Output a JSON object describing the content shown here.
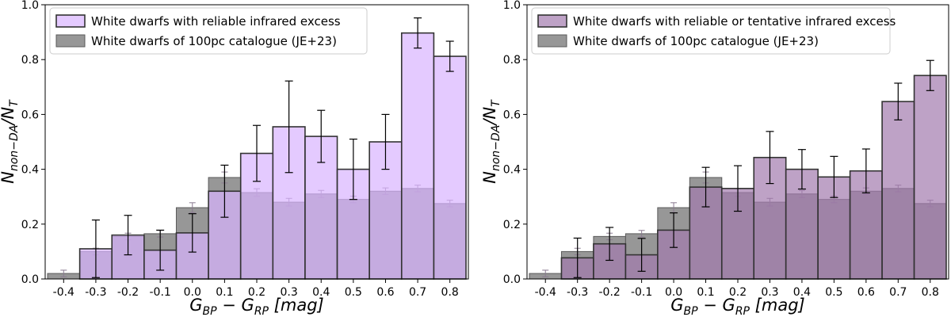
{
  "chart_data": [
    {
      "type": "bar",
      "categories": [
        "-0.4",
        "-0.3",
        "-0.2",
        "-0.1",
        "0.0",
        "0.1",
        "0.2",
        "0.3",
        "0.4",
        "0.5",
        "0.6",
        "0.7",
        "0.8"
      ],
      "xlabel_main": "G",
      "xlabel_sub1": "BP",
      "xlabel_mid": " − G",
      "xlabel_sub2": "RP",
      "xlabel_unit": " [mag]",
      "ylabel_main": "N",
      "ylabel_sub1": "non−DA",
      "ylabel_slash": "/N",
      "ylabel_sub2": "T",
      "ylim": [
        0,
        1.0
      ],
      "yticks": [
        "0.0",
        "0.2",
        "0.4",
        "0.6",
        "0.8",
        "1.0"
      ],
      "legend_position": "top-left",
      "series": [
        {
          "name": "White dwarfs of 100pc catalogue (JE+23)",
          "color": "#808080",
          "values": [
            0.02,
            0.1,
            0.155,
            0.165,
            0.26,
            0.37,
            0.315,
            0.28,
            0.31,
            0.29,
            0.32,
            0.33,
            0.275
          ],
          "errors": [
            0.012,
            0.012,
            0.012,
            0.012,
            0.018,
            0.02,
            0.014,
            0.014,
            0.013,
            0.012,
            0.012,
            0.012,
            0.012
          ]
        },
        {
          "name": "White dwarfs with reliable infrared excess",
          "color": "#d9b3ff",
          "values": [
            null,
            0.11,
            0.16,
            0.105,
            0.168,
            0.32,
            0.458,
            0.555,
            0.52,
            0.4,
            0.5,
            0.897,
            0.812
          ],
          "errors": [
            null,
            0.105,
            0.072,
            0.073,
            0.07,
            0.095,
            0.102,
            0.167,
            0.095,
            0.11,
            0.1,
            0.055,
            0.055
          ]
        }
      ]
    },
    {
      "type": "bar",
      "categories": [
        "-0.4",
        "-0.3",
        "-0.2",
        "-0.1",
        "0.0",
        "0.1",
        "0.2",
        "0.3",
        "0.4",
        "0.5",
        "0.6",
        "0.7",
        "0.8"
      ],
      "xlabel_main": "G",
      "xlabel_sub1": "BP",
      "xlabel_mid": " − G",
      "xlabel_sub2": "RP",
      "xlabel_unit": " [mag]",
      "ylabel_main": "N",
      "ylabel_sub1": "non−DA",
      "ylabel_slash": "/N",
      "ylabel_sub2": "T",
      "ylim": [
        0,
        1.0
      ],
      "yticks": [
        "0.0",
        "0.2",
        "0.4",
        "0.6",
        "0.8",
        "1.0"
      ],
      "legend_position": "top-left",
      "series": [
        {
          "name": "White dwarfs of 100pc catalogue (JE+23)",
          "color": "#808080",
          "values": [
            0.02,
            0.1,
            0.155,
            0.165,
            0.26,
            0.37,
            0.315,
            0.28,
            0.31,
            0.29,
            0.32,
            0.33,
            0.275
          ],
          "errors": [
            0.012,
            0.012,
            0.012,
            0.012,
            0.018,
            0.02,
            0.014,
            0.014,
            0.013,
            0.012,
            0.012,
            0.012,
            0.012
          ]
        },
        {
          "name": "White dwarfs with reliable or tentative infrared excess",
          "color": "#a27bae",
          "values": [
            null,
            0.077,
            0.128,
            0.088,
            0.178,
            0.335,
            0.33,
            0.443,
            0.4,
            0.372,
            0.394,
            0.647,
            0.742
          ],
          "errors": [
            null,
            0.072,
            0.06,
            0.06,
            0.063,
            0.072,
            0.083,
            0.095,
            0.072,
            0.075,
            0.08,
            0.067,
            0.055
          ]
        }
      ]
    }
  ]
}
